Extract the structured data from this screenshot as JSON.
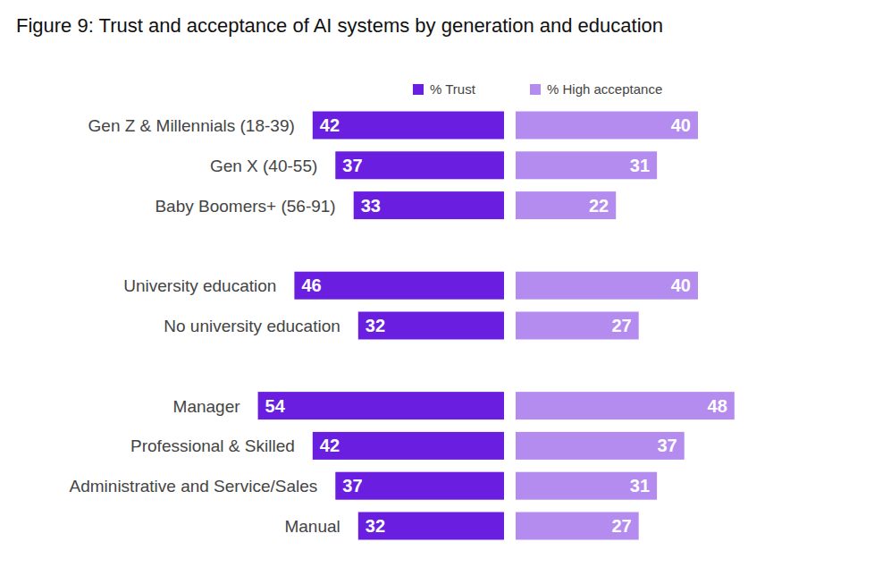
{
  "chart_data": {
    "type": "bar",
    "title": "Figure 9: Trust and acceptance of AI systems by generation and education",
    "orientation": "horizontal",
    "categories": [
      "Gen Z & Millennials (18-39)",
      "Gen X (40-55)",
      "Baby Boomers+ (56-91)",
      null,
      "University education",
      "No university education",
      null,
      "Manager",
      "Professional & Skilled",
      "Administrative and Service/Sales",
      "Manual"
    ],
    "series": [
      {
        "name": "% Trust",
        "color": "#6a1fe0",
        "values": [
          42,
          37,
          33,
          null,
          46,
          32,
          null,
          54,
          42,
          37,
          32
        ]
      },
      {
        "name": "% High acceptance",
        "color": "#b48cf0",
        "values": [
          40,
          31,
          22,
          null,
          40,
          27,
          null,
          48,
          37,
          31,
          27
        ]
      }
    ],
    "xlim": [
      0,
      60
    ],
    "data_labels": true,
    "tick_labels": false,
    "grid": false,
    "legend": "top"
  }
}
